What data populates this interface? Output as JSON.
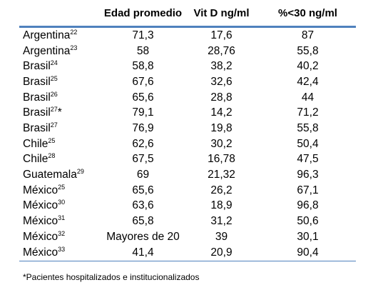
{
  "headers": [
    "",
    "Edad promedio",
    "Vit D ng/ml",
    "%<30 ng/ml"
  ],
  "rows": [
    {
      "country": "Argentina",
      "ref": "22",
      "mark": "",
      "edad": "71,3",
      "vitd": "17,6",
      "pct": "87"
    },
    {
      "country": "Argentina",
      "ref": "23",
      "mark": "",
      "edad": "58",
      "vitd": "28,76",
      "pct": "55,8"
    },
    {
      "country": "Brasil",
      "ref": "24",
      "mark": "",
      "edad": "58,8",
      "vitd": "38,2",
      "pct": "40,2"
    },
    {
      "country": "Brasil",
      "ref": "25",
      "mark": "",
      "edad": "67,6",
      "vitd": "32,6",
      "pct": "42,4"
    },
    {
      "country": "Brasil",
      "ref": "26",
      "mark": "",
      "edad": "65,6",
      "vitd": "28,8",
      "pct": "44"
    },
    {
      "country": "Brasil",
      "ref": "27",
      "mark": "*",
      "edad": "79,1",
      "vitd": "14,2",
      "pct": "71,2"
    },
    {
      "country": "Brasil",
      "ref": "27",
      "mark": "",
      "edad": "76,9",
      "vitd": "19,8",
      "pct": "55,8"
    },
    {
      "country": "Chile",
      "ref": "25",
      "mark": "",
      "edad": "62,6",
      "vitd": "30,2",
      "pct": "50,4"
    },
    {
      "country": "Chile",
      "ref": "28",
      "mark": "",
      "edad": "67,5",
      "vitd": "16,78",
      "pct": "47,5"
    },
    {
      "country": "Guatemala",
      "ref": "29",
      "mark": "",
      "edad": "69",
      "vitd": "21,32",
      "pct": "96,3"
    },
    {
      "country": "México",
      "ref": "25",
      "mark": "",
      "edad": "65,6",
      "vitd": "26,2",
      "pct": "67,1"
    },
    {
      "country": "México",
      "ref": "30",
      "mark": "",
      "edad": "63,6",
      "vitd": "18,9",
      "pct": "96,8"
    },
    {
      "country": "México",
      "ref": "31",
      "mark": "",
      "edad": "65,8",
      "vitd": "31,2",
      "pct": "50,6"
    },
    {
      "country": "México",
      "ref": "32",
      "mark": "",
      "edad": "Mayores de 20",
      "vitd": "39",
      "pct": "30,1"
    },
    {
      "country": "México",
      "ref": "33",
      "mark": "",
      "edad": "41,4",
      "vitd": "20,9",
      "pct": "90,4"
    }
  ],
  "footnote": "*Pacientes hospitalizados e institucionalizados",
  "colors": {
    "rule": "#4f81bd"
  }
}
